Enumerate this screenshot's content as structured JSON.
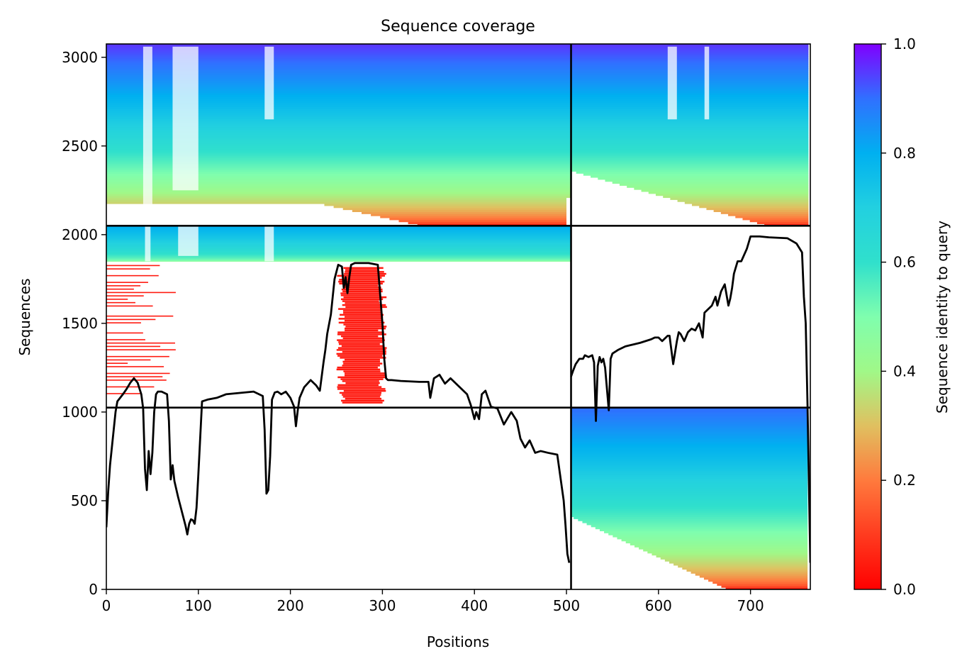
{
  "chart_data": {
    "type": "heatmap",
    "title": "Sequence coverage",
    "xlabel": "Positions",
    "ylabel": "Sequences",
    "xlim": [
      0,
      765
    ],
    "ylim": [
      0,
      3075
    ],
    "x_ticks": [
      0,
      100,
      200,
      300,
      400,
      500,
      600,
      700
    ],
    "y_ticks": [
      0,
      500,
      1000,
      1500,
      2000,
      2500,
      3000
    ],
    "colorbar": {
      "label": "Sequence identity to query",
      "colormap": "rainbow",
      "range": [
        0,
        1
      ],
      "ticks": [
        "0.0",
        "0.2",
        "0.4",
        "0.6",
        "0.8",
        "1.0"
      ]
    },
    "chain_boundaries": {
      "x": [
        505
      ],
      "y": [
        1025,
        2050
      ]
    },
    "blocks": [
      {
        "x_range": [
          0,
          505
        ],
        "y_range": [
          2050,
          3075
        ],
        "note": "dense coverage, identity decreasing downward"
      },
      {
        "x_range": [
          505,
          765
        ],
        "y_range": [
          2050,
          3075
        ],
        "note": "dense coverage, identity decreasing downward"
      },
      {
        "x_range": [
          0,
          505
        ],
        "y_range": [
          1025,
          2050
        ],
        "note": "partial coverage, low identity regions around 250-305"
      },
      {
        "x_range": [
          505,
          765
        ],
        "y_range": [
          0,
          1025
        ],
        "note": "dense coverage, identity decreasing downward"
      }
    ],
    "coverage_line": {
      "x": [
        0,
        2,
        4,
        6,
        8,
        10,
        12,
        15,
        18,
        22,
        26,
        30,
        34,
        38,
        40,
        42,
        44,
        46,
        48,
        50,
        52,
        54,
        56,
        60,
        66,
        68,
        70,
        72,
        74,
        78,
        82,
        86,
        88,
        90,
        92,
        94,
        96,
        98,
        100,
        104,
        110,
        120,
        130,
        140,
        150,
        160,
        170,
        172,
        174,
        176,
        178,
        180,
        183,
        186,
        190,
        195,
        200,
        204,
        206,
        208,
        210,
        215,
        222,
        228,
        232,
        236,
        238,
        240,
        244,
        248,
        252,
        256,
        258,
        260,
        262,
        264,
        266,
        268,
        270,
        275,
        285,
        295,
        300,
        302,
        304,
        306,
        310,
        320,
        340,
        350,
        352,
        356,
        362,
        368,
        374,
        378,
        384,
        392,
        396,
        400,
        402,
        405,
        408,
        412,
        418,
        425,
        432,
        440,
        446,
        450,
        455,
        460,
        466,
        472,
        480,
        490,
        497,
        499,
        501,
        503,
        504
      ],
      "y": [
        350,
        550,
        700,
        800,
        900,
        1000,
        1060,
        1080,
        1100,
        1130,
        1165,
        1190,
        1165,
        1100,
        1020,
        680,
        560,
        780,
        650,
        770,
        1000,
        1100,
        1115,
        1115,
        1100,
        950,
        620,
        700,
        610,
        520,
        440,
        360,
        310,
        370,
        395,
        390,
        370,
        460,
        650,
        1060,
        1070,
        1080,
        1100,
        1105,
        1110,
        1115,
        1090,
        900,
        540,
        560,
        750,
        1070,
        1110,
        1115,
        1100,
        1115,
        1080,
        1030,
        920,
        1010,
        1080,
        1140,
        1180,
        1150,
        1120,
        1280,
        1350,
        1440,
        1550,
        1750,
        1830,
        1820,
        1700,
        1760,
        1670,
        1760,
        1830,
        1835,
        1840,
        1840,
        1840,
        1830,
        1500,
        1300,
        1190,
        1180,
        1180,
        1175,
        1170,
        1170,
        1080,
        1190,
        1210,
        1160,
        1190,
        1170,
        1140,
        1100,
        1040,
        960,
        1000,
        960,
        1100,
        1120,
        1030,
        1020,
        930,
        1000,
        950,
        850,
        800,
        840,
        770,
        780,
        770,
        760,
        500,
        360,
        200,
        150
      ],
      "x2": [
        505,
        507,
        510,
        514,
        518,
        520,
        524,
        528,
        530,
        532,
        534,
        536,
        538,
        540,
        542,
        546,
        548,
        550,
        556,
        564,
        572,
        580,
        586,
        592,
        596,
        600,
        604,
        608,
        610,
        612,
        616,
        620,
        622,
        624,
        628,
        632,
        636,
        640,
        644,
        648,
        650,
        654,
        658,
        662,
        664,
        668,
        672,
        676,
        678,
        680,
        682,
        686,
        690,
        696,
        700,
        710,
        720,
        740,
        750,
        756,
        758,
        760,
        762,
        765
      ],
      "y2": [
        1200,
        1230,
        1270,
        1300,
        1300,
        1320,
        1310,
        1320,
        1280,
        950,
        1260,
        1310,
        1280,
        1300,
        1250,
        1010,
        1300,
        1330,
        1350,
        1370,
        1380,
        1390,
        1400,
        1410,
        1420,
        1420,
        1400,
        1420,
        1430,
        1430,
        1270,
        1400,
        1450,
        1440,
        1400,
        1450,
        1470,
        1460,
        1500,
        1420,
        1560,
        1580,
        1600,
        1650,
        1600,
        1680,
        1720,
        1600,
        1640,
        1700,
        1780,
        1850,
        1850,
        1920,
        1990,
        1990,
        1985,
        1980,
        1950,
        1900,
        1650,
        1500,
        1030,
        150
      ]
    }
  }
}
